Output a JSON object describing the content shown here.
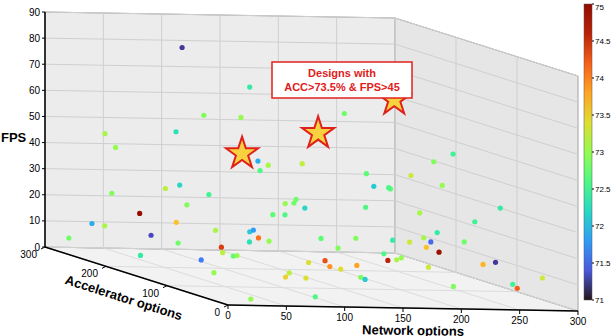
{
  "chart_data": {
    "type": "scatter3d",
    "xlabel": "Network options",
    "ylabel": "Accelerator options",
    "zlabel": "FPS",
    "xlim": [
      0,
      300
    ],
    "ylim": [
      0,
      300
    ],
    "zlim": [
      0,
      90
    ],
    "xticks": [
      0,
      50,
      100,
      150,
      200,
      250,
      300
    ],
    "yticks": [
      0,
      100,
      200,
      300
    ],
    "zticks": [
      0,
      10,
      20,
      30,
      40,
      50,
      60,
      70,
      80,
      90
    ],
    "grid": true,
    "x": [
      10,
      25,
      40,
      55,
      70,
      85,
      100,
      115,
      130,
      145,
      160,
      175,
      190,
      205,
      220,
      235,
      250,
      265,
      280,
      295,
      20,
      35,
      50,
      65,
      80,
      95,
      110,
      125,
      140,
      155,
      170,
      185,
      200,
      215,
      230,
      245,
      260,
      275,
      290,
      5,
      30,
      45,
      60,
      75,
      90,
      105,
      120,
      135,
      150,
      165,
      180,
      195,
      210,
      225,
      240,
      255,
      270,
      285,
      15,
      50,
      95,
      125,
      160,
      190,
      230,
      270,
      20,
      60,
      110,
      150,
      180,
      240,
      100,
      220,
      60,
      260,
      30,
      280,
      140,
      200,
      85,
      10,
      245,
      175,
      55,
      295,
      120,
      35,
      215,
      165
    ],
    "y": [
      280,
      250,
      220,
      190,
      260,
      230,
      200,
      170,
      240,
      210,
      180,
      150,
      270,
      130,
      100,
      80,
      60,
      40,
      20,
      90,
      120,
      90,
      60,
      30,
      10,
      140,
      110,
      80,
      50,
      20,
      290,
      260,
      230,
      200,
      170,
      140,
      110,
      180,
      150,
      200,
      160,
      130,
      100,
      70,
      40,
      280,
      250,
      150,
      120,
      90,
      60,
      30,
      280,
      250,
      220,
      190,
      250,
      220,
      60,
      280,
      70,
      190,
      240,
      100,
      140,
      70,
      240,
      200,
      250,
      60,
      200,
      90,
      170,
      230,
      190,
      160,
      20,
      280,
      140,
      50,
      110,
      30,
      30,
      110,
      250,
      250,
      20,
      290,
      60,
      280
    ],
    "z": [
      5,
      12,
      3,
      18,
      8,
      22,
      6,
      14,
      2,
      10,
      25,
      4,
      16,
      9,
      20,
      3,
      13,
      7,
      11,
      2,
      15,
      6,
      24,
      9,
      3,
      19,
      5,
      12,
      8,
      17,
      4,
      21,
      10,
      2,
      14,
      6,
      18,
      9,
      23,
      28,
      33,
      8,
      12,
      30,
      14,
      26,
      11,
      29,
      7,
      32,
      15,
      27,
      35,
      5,
      31,
      12,
      28,
      8,
      38,
      40,
      36,
      42,
      37,
      39,
      41,
      34,
      48,
      52,
      55,
      47,
      50,
      53,
      60,
      58,
      85,
      45,
      1,
      1,
      1,
      22,
      44,
      20,
      16,
      3,
      17,
      19,
      25,
      10,
      43,
      64
    ],
    "color_values": [
      72.8,
      73.1,
      72.4,
      73.6,
      71.3,
      72.9,
      73.2,
      74.1,
      72.7,
      73.0,
      72.2,
      73.4,
      72.6,
      74.6,
      73.1,
      72.9,
      73.7,
      72.5,
      73.3,
      74.2,
      72.8,
      73.0,
      72.1,
      73.5,
      72.6,
      71.8,
      73.2,
      74.3,
      72.9,
      73.1,
      72.3,
      73.0,
      72.7,
      73.8,
      72.4,
      73.3,
      72.8,
      74.8,
      72.5,
      72.9,
      73.2,
      71.6,
      73.0,
      72.7,
      73.4,
      72.2,
      73.1,
      72.8,
      73.9,
      72.6,
      73.0,
      72.4,
      73.2,
      72.9,
      72.1,
      73.3,
      72.7,
      73.6,
      72.5,
      73.0,
      72.8,
      71.9,
      73.1,
      72.6,
      73.3,
      72.4,
      73.1,
      72.3,
      72.9,
      72.7,
      73.2,
      72.5,
      73.0,
      72.8,
      71.2,
      72.9,
      73.0,
      72.6,
      73.4,
      71.5,
      72.6,
      74.4,
      71.2,
      72.1,
      74.9,
      73.1,
      72.9,
      71.9,
      73.0,
      72.4
    ],
    "highlights": {
      "x": [
        80,
        140,
        200
      ],
      "y": [
        130,
        120,
        110
      ],
      "z": [
        49,
        58,
        72
      ],
      "color_values": [
        73.6,
        73.8,
        74.0
      ]
    },
    "annotation": {
      "lines": [
        "Designs with",
        "ACC>73.5% & FPS>45"
      ]
    },
    "colorbar": {
      "lim": [
        71,
        75
      ],
      "ticks": [
        71,
        71.5,
        72,
        72.5,
        73,
        73.5,
        74,
        74.5,
        75
      ]
    }
  }
}
